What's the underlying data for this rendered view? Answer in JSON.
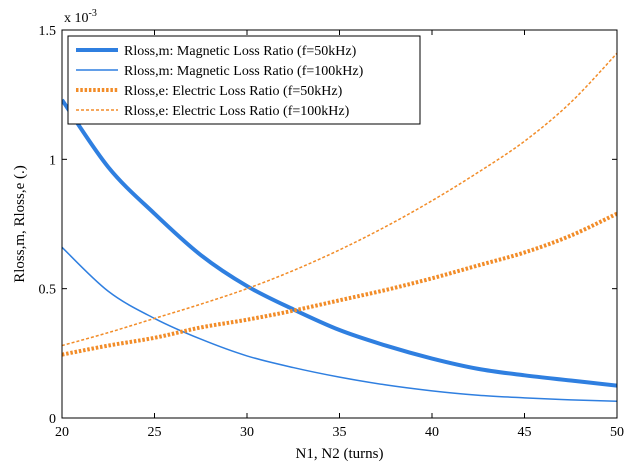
{
  "chart_data": {
    "type": "line",
    "title": "",
    "xlabel": "N1, N2 (turns)",
    "ylabel": "Rloss,m, Rloss,e (.)",
    "y_exponent_label": "x 10",
    "y_exponent_power": "-3",
    "xlim": [
      20,
      50
    ],
    "ylim": [
      0,
      0.0015
    ],
    "x_ticks": [
      20,
      25,
      30,
      35,
      40,
      45,
      50
    ],
    "x_tick_labels": [
      "20",
      "25",
      "30",
      "35",
      "40",
      "45",
      "50"
    ],
    "y_ticks": [
      0,
      0.0005,
      0.001,
      0.0015
    ],
    "y_tick_labels": [
      "0",
      "0.5",
      "1",
      "1.5"
    ],
    "grid": false,
    "legend_position": "top-left",
    "x": [
      20,
      22.5,
      25,
      27.5,
      30,
      32.5,
      35,
      37.5,
      40,
      42.5,
      45,
      47.5,
      50
    ],
    "series": [
      {
        "name": "Rloss,m: Magnetic Loss Ratio (f=50kHz)",
        "color": "#2f7fe0",
        "line_style": "solid",
        "line_width": 4,
        "values": [
          0.00123,
          0.00097,
          0.00079,
          0.00063,
          0.00051,
          0.00042,
          0.00034,
          0.00028,
          0.00023,
          0.00019,
          0.000165,
          0.000145,
          0.000125
        ]
      },
      {
        "name": "Rloss,m: Magnetic Loss Ratio (f=100kHz)",
        "color": "#2f7fe0",
        "line_style": "solid",
        "line_width": 1.5,
        "values": [
          0.00066,
          0.00049,
          0.000385,
          0.000305,
          0.00024,
          0.000195,
          0.000158,
          0.000128,
          0.000105,
          8.8e-05,
          7.8e-05,
          7e-05,
          6.5e-05
        ]
      },
      {
        "name": "Rloss,e: Electric Loss Ratio (f=50kHz)",
        "color": "#f28c28",
        "line_style": "dotted",
        "line_width": 4,
        "values": [
          0.000245,
          0.00028,
          0.00031,
          0.00035,
          0.00038,
          0.000415,
          0.000455,
          0.000495,
          0.00054,
          0.00059,
          0.00064,
          0.000705,
          0.00079
        ]
      },
      {
        "name": "Rloss,e: Electric Loss Ratio (f=100kHz)",
        "color": "#f28c28",
        "line_style": "dashed",
        "line_width": 1.5,
        "values": [
          0.00028,
          0.00033,
          0.000385,
          0.00044,
          0.0005,
          0.00057,
          0.00065,
          0.00074,
          0.00084,
          0.00095,
          0.00107,
          0.00122,
          0.00141
        ]
      }
    ]
  }
}
